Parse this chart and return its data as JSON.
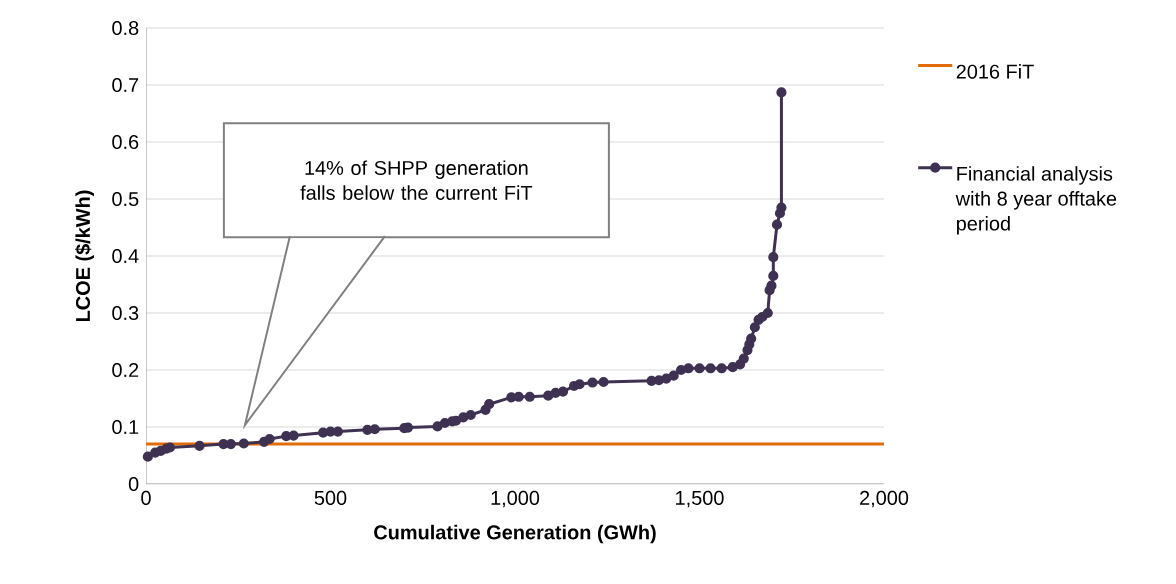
{
  "chart_data": {
    "type": "line",
    "xlabel": "Cumulative Generation (GWh)",
    "ylabel": "LCOE ($/kWh)",
    "xlim": [
      0,
      2000
    ],
    "ylim": [
      0,
      0.8
    ],
    "xticks": [
      0,
      500,
      {
        "value": 1000,
        "label": "1,000"
      },
      {
        "value": 1500,
        "label": "1,500"
      },
      {
        "value": 2000,
        "label": "2,000"
      }
    ],
    "yticks": [
      0,
      0.1,
      0.2,
      0.3,
      0.4,
      0.5,
      0.6,
      0.7,
      0.8
    ],
    "grid": "y",
    "legend": "right",
    "annotations": [
      "14% of SHPP generation falls below the current FiT"
    ],
    "series": [
      {
        "name": "2016 FiT",
        "color": "#e36c09",
        "marker": "none",
        "x": [
          0,
          2000
        ],
        "values": [
          0.07,
          0.07
        ]
      },
      {
        "name": "Financial analysis with 8 year offtake period",
        "color": "#3f3151",
        "marker": "circle",
        "x": [
          5,
          25,
          40,
          55,
          65,
          145,
          210,
          230,
          265,
          320,
          335,
          380,
          400,
          480,
          500,
          520,
          600,
          620,
          700,
          710,
          790,
          810,
          830,
          840,
          860,
          880,
          920,
          930,
          990,
          1010,
          1040,
          1090,
          1110,
          1130,
          1160,
          1175,
          1210,
          1240,
          1370,
          1390,
          1410,
          1430,
          1450,
          1470,
          1500,
          1530,
          1560,
          1590,
          1610,
          1620,
          1630,
          1635,
          1640,
          1650,
          1660,
          1670,
          1685,
          1690,
          1695,
          1700,
          1700,
          1710,
          1718,
          1722,
          1722
        ],
        "values": [
          0.048,
          0.055,
          0.058,
          0.062,
          0.064,
          0.067,
          0.07,
          0.07,
          0.071,
          0.074,
          0.079,
          0.084,
          0.085,
          0.09,
          0.092,
          0.092,
          0.095,
          0.096,
          0.098,
          0.099,
          0.101,
          0.107,
          0.11,
          0.111,
          0.117,
          0.121,
          0.13,
          0.14,
          0.152,
          0.153,
          0.153,
          0.155,
          0.16,
          0.162,
          0.172,
          0.175,
          0.178,
          0.179,
          0.181,
          0.182,
          0.185,
          0.19,
          0.2,
          0.203,
          0.203,
          0.203,
          0.203,
          0.205,
          0.21,
          0.22,
          0.235,
          0.245,
          0.255,
          0.275,
          0.288,
          0.293,
          0.3,
          0.34,
          0.348,
          0.365,
          0.398,
          0.455,
          0.475,
          0.485,
          0.687
        ]
      }
    ]
  }
}
